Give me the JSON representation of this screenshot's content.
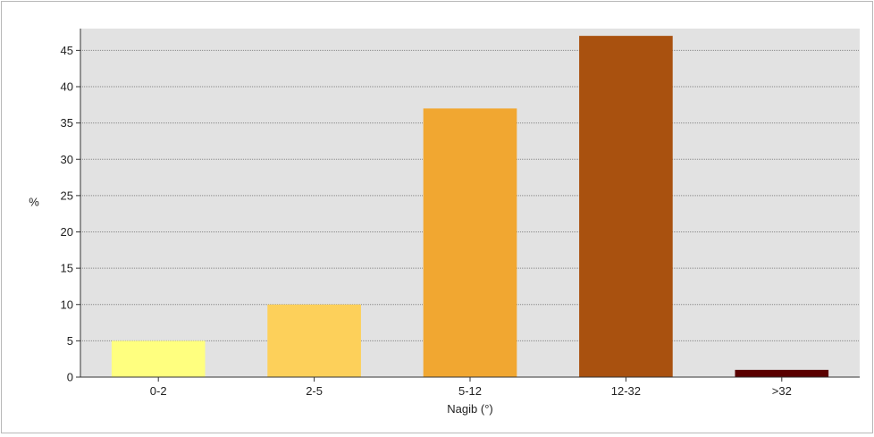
{
  "chart_data": {
    "type": "bar",
    "title": "",
    "xlabel": "Nagib (°)",
    "ylabel": "%",
    "categories": [
      "0-2",
      "2-5",
      "5-12",
      "12-32",
      ">32"
    ],
    "values": [
      5,
      10,
      37,
      47,
      1
    ],
    "ylim": [
      0,
      48
    ],
    "yticks": [
      0,
      5,
      10,
      15,
      20,
      25,
      30,
      35,
      40,
      45
    ],
    "grid": true,
    "legend": false,
    "colors": {
      "plot_background": "#e2e2e2",
      "gridline": "#8a8a8a",
      "bars": [
        "#ffff7f",
        "#fdd05a",
        "#f1a731",
        "#a9510f",
        "#5a0000"
      ]
    }
  }
}
